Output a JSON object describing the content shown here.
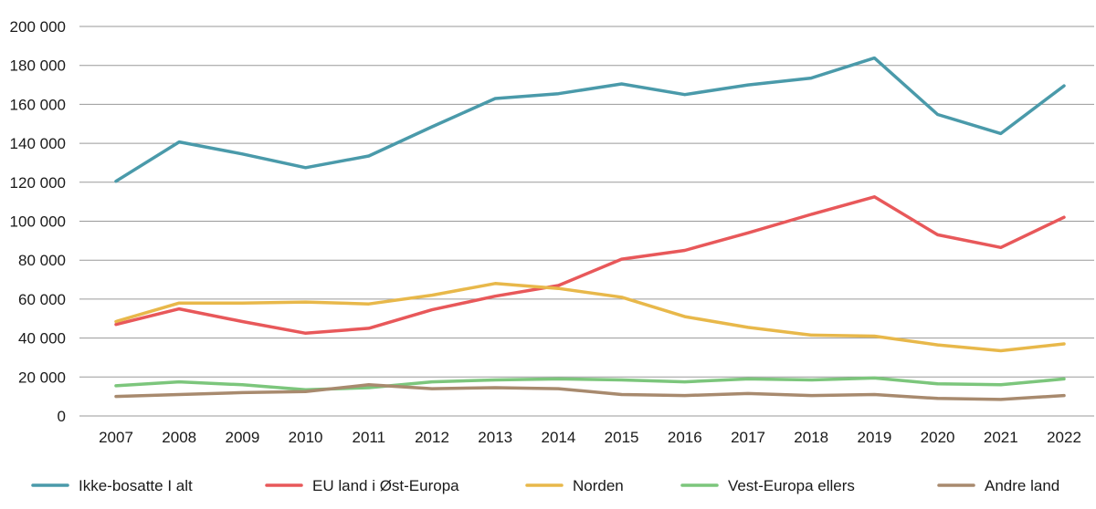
{
  "chart_data": {
    "type": "line",
    "title": "",
    "xlabel": "",
    "ylabel": "",
    "categories": [
      "2007",
      "2008",
      "2009",
      "2010",
      "2011",
      "2012",
      "2013",
      "2014",
      "2015",
      "2016",
      "2017",
      "2018",
      "2019",
      "2020",
      "2021",
      "2022"
    ],
    "ylim": [
      0,
      200000
    ],
    "yticks": [
      0,
      20000,
      40000,
      60000,
      80000,
      100000,
      120000,
      140000,
      160000,
      180000,
      200000
    ],
    "ytick_labels": [
      "0",
      "20 000",
      "40 000",
      "60 000",
      "80 000",
      "100 000",
      "120 000",
      "140 000",
      "160 000",
      "180 000",
      "200 000"
    ],
    "grid": true,
    "legend_position": "bottom",
    "series": [
      {
        "name": "Ikke-bosatte I alt",
        "color": "#4a9aaa",
        "values": [
          120500,
          140700,
          134500,
          127500,
          133500,
          148500,
          163000,
          165500,
          170500,
          165000,
          170000,
          173500,
          183800,
          154800,
          145000,
          169500
        ]
      },
      {
        "name": "EU land i Øst-Europa",
        "color": "#e8585a",
        "values": [
          47000,
          55000,
          48500,
          42500,
          45000,
          54500,
          61500,
          67000,
          80500,
          85000,
          94000,
          103500,
          112500,
          93000,
          86500,
          102000
        ]
      },
      {
        "name": "Norden",
        "color": "#e8b84a",
        "values": [
          48500,
          58000,
          58000,
          58500,
          57500,
          62000,
          68000,
          65500,
          61000,
          51000,
          45500,
          41500,
          41000,
          36500,
          33500,
          37000
        ]
      },
      {
        "name": "Vest-Europa ellers",
        "color": "#7cc67c",
        "values": [
          15500,
          17500,
          16000,
          13500,
          14500,
          17500,
          18500,
          19000,
          18500,
          17500,
          19000,
          18500,
          19500,
          16500,
          16000,
          19000
        ]
      },
      {
        "name": "Andre land",
        "color": "#a88a6e",
        "values": [
          10000,
          11000,
          12000,
          12500,
          16000,
          14000,
          14500,
          14000,
          11000,
          10500,
          11500,
          10500,
          11000,
          9000,
          8500,
          10500
        ]
      }
    ]
  }
}
